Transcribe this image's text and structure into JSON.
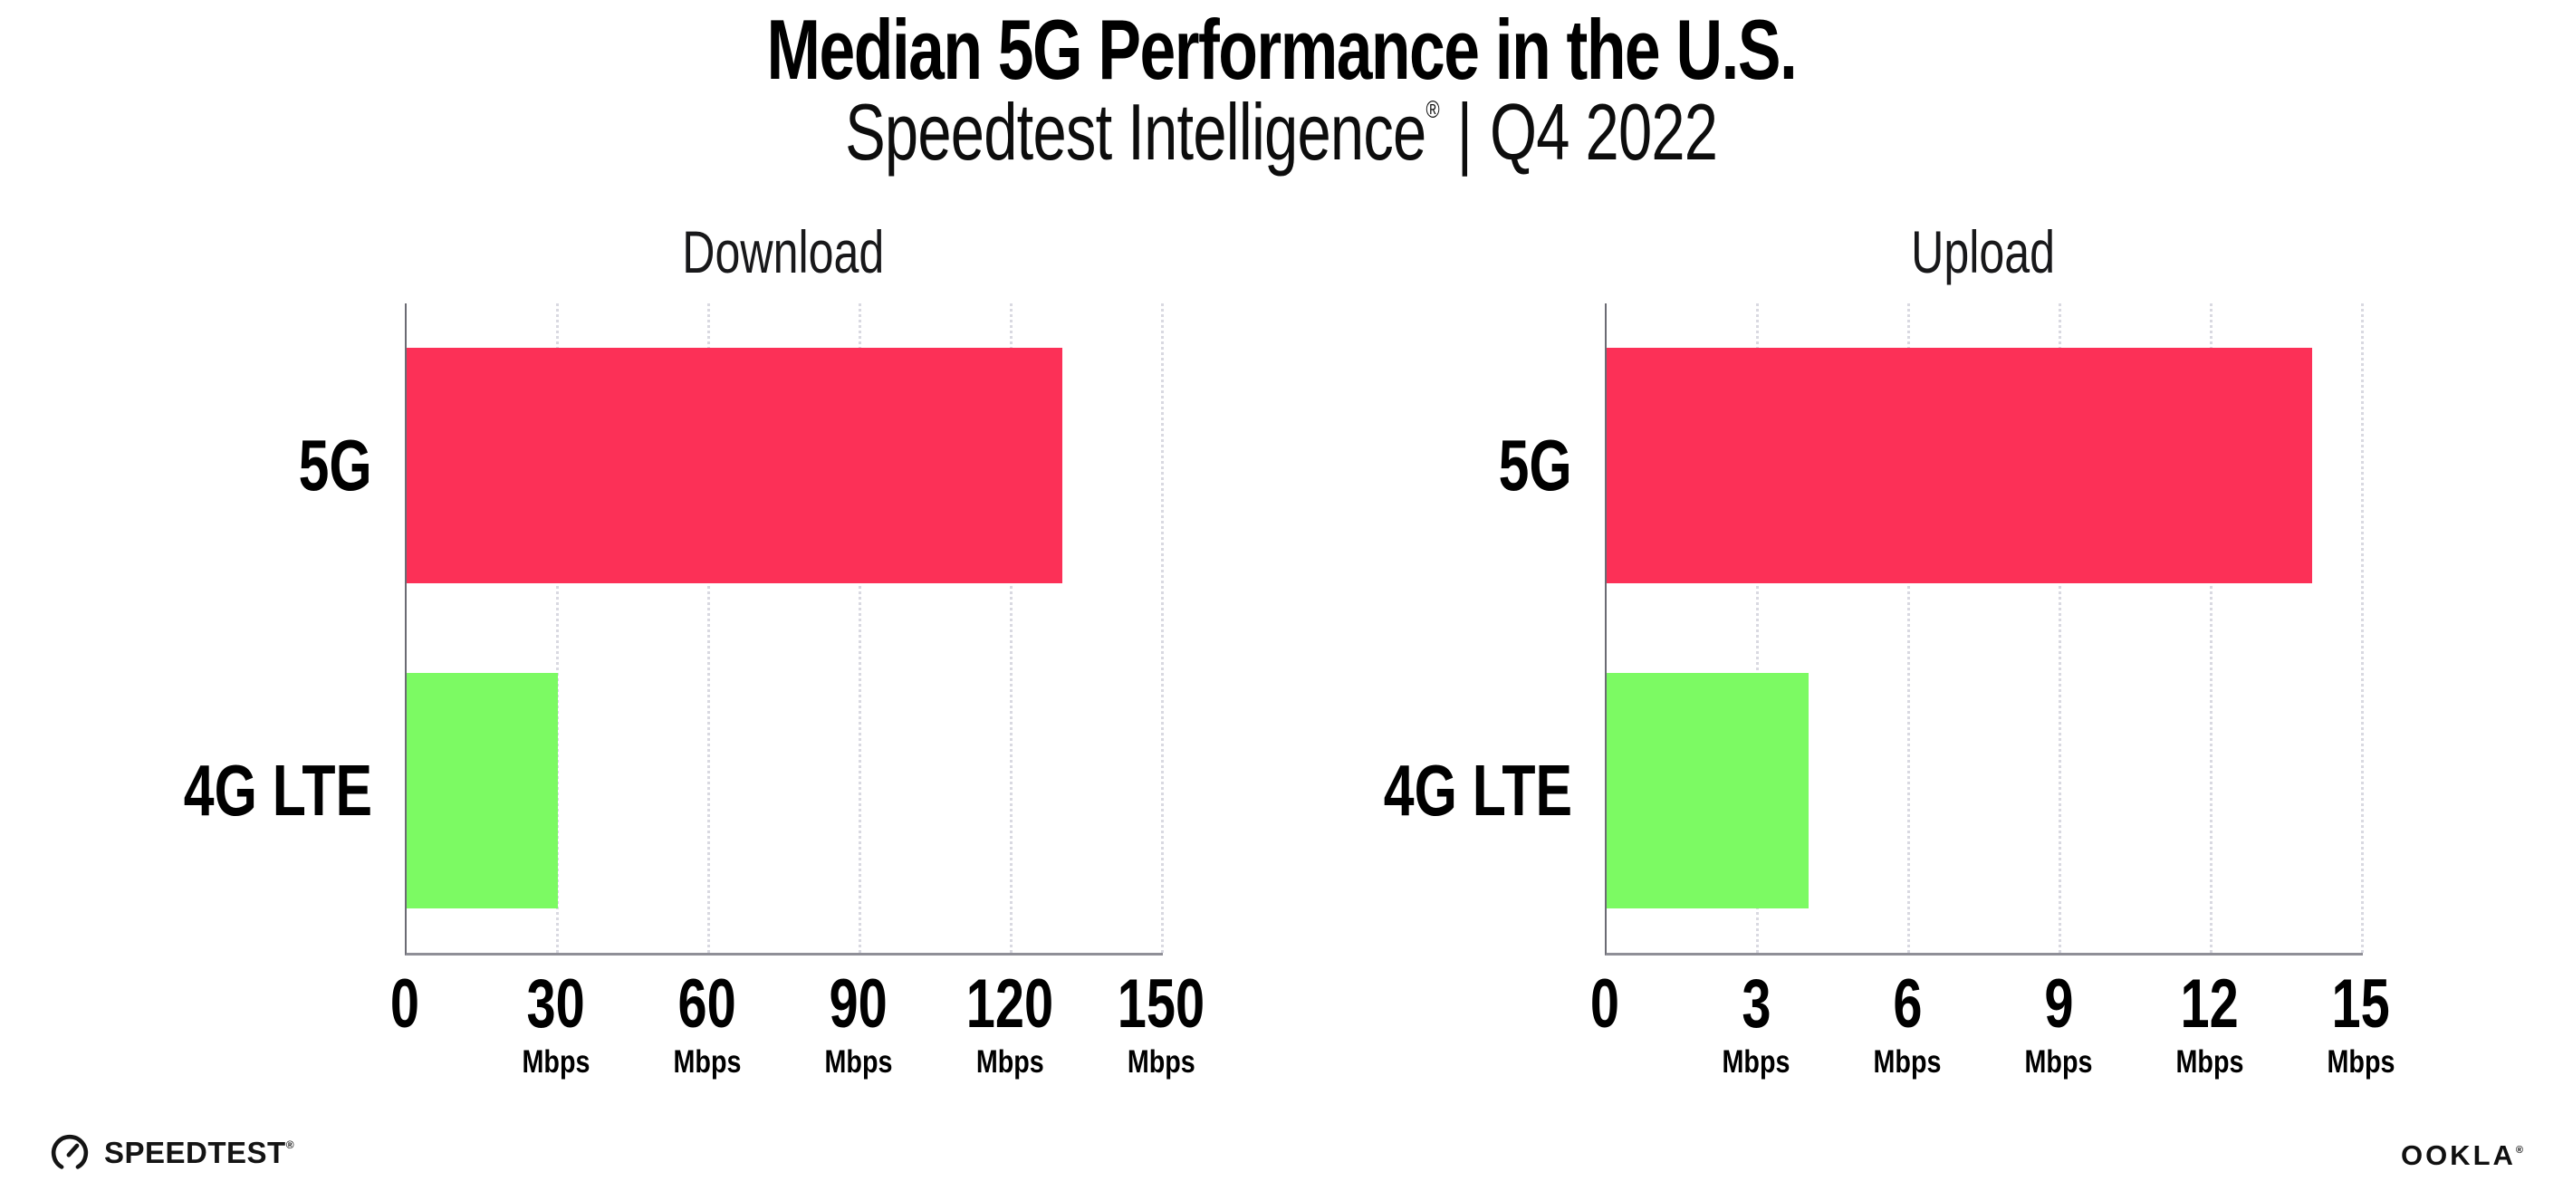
{
  "header": {
    "title": "Median 5G Performance in the U.S.",
    "subtitle_product": "Speedtest Intelligence",
    "subtitle_reg": "®",
    "subtitle_divider": "|",
    "subtitle_period": "Q4 2022"
  },
  "chart_data": [
    {
      "type": "bar",
      "orientation": "horizontal",
      "title": "Download",
      "categories": [
        "5G",
        "4G LTE"
      ],
      "values": [
        130,
        30
      ],
      "unit": "Mbps",
      "xlim": [
        0,
        150
      ],
      "xticks": [
        0,
        30,
        60,
        90,
        120,
        150
      ],
      "bar_colors": [
        "#FC3057",
        "#7CFA63"
      ],
      "grid": "dotted-vertical",
      "legend": "none"
    },
    {
      "type": "bar",
      "orientation": "horizontal",
      "title": "Upload",
      "categories": [
        "5G",
        "4G LTE"
      ],
      "values": [
        14,
        4
      ],
      "unit": "Mbps",
      "xlim": [
        0,
        15
      ],
      "xticks": [
        0,
        3,
        6,
        9,
        12,
        15
      ],
      "bar_colors": [
        "#FC3057",
        "#7CFA63"
      ],
      "grid": "dotted-vertical",
      "legend": "none"
    }
  ],
  "footer": {
    "speedtest_label": "SPEEDTEST",
    "speedtest_reg": "®",
    "ookla_label": "OOKLA",
    "ookla_reg": "®"
  },
  "colors": {
    "bar_5g": "#FC3057",
    "bar_4g_lte": "#7CFA63",
    "background": "#FFFFFF",
    "text": "#000000",
    "axis": "#8F8F97",
    "spine": "#6B6B73",
    "gridline": "#D9D9E1"
  }
}
